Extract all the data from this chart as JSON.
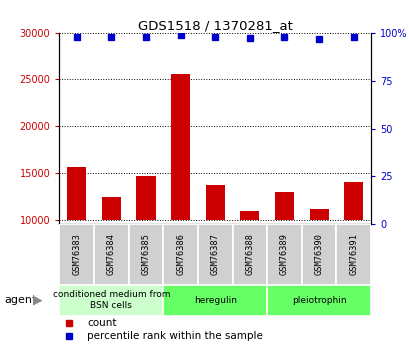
{
  "title": "GDS1518 / 1370281_at",
  "samples": [
    "GSM76383",
    "GSM76384",
    "GSM76385",
    "GSM76386",
    "GSM76387",
    "GSM76388",
    "GSM76389",
    "GSM76390",
    "GSM76391"
  ],
  "counts": [
    15600,
    12400,
    14700,
    25600,
    13700,
    10900,
    13000,
    11100,
    14000
  ],
  "percentiles": [
    98,
    98,
    98,
    99,
    98,
    97.5,
    98,
    97,
    98
  ],
  "ylim_left": [
    9500,
    30000
  ],
  "ylim_right": [
    0,
    100
  ],
  "yticks_left": [
    10000,
    15000,
    20000,
    25000,
    30000
  ],
  "yticks_right": [
    0,
    25,
    50,
    75,
    100
  ],
  "bar_color": "#cc0000",
  "dot_color": "#0000cc",
  "groups": [
    {
      "label": "conditioned medium from\nBSN cells",
      "start": 0,
      "end": 3,
      "color": "#ccffcc"
    },
    {
      "label": "heregulin",
      "start": 3,
      "end": 6,
      "color": "#66ff66"
    },
    {
      "label": "pleiotrophin",
      "start": 6,
      "end": 9,
      "color": "#66ff66"
    }
  ],
  "cell_color": "#d0d0d0",
  "agent_label": "agent",
  "legend_count_label": "count",
  "legend_pct_label": "percentile rank within the sample",
  "bar_width": 0.55,
  "bar_bottom": 10000
}
